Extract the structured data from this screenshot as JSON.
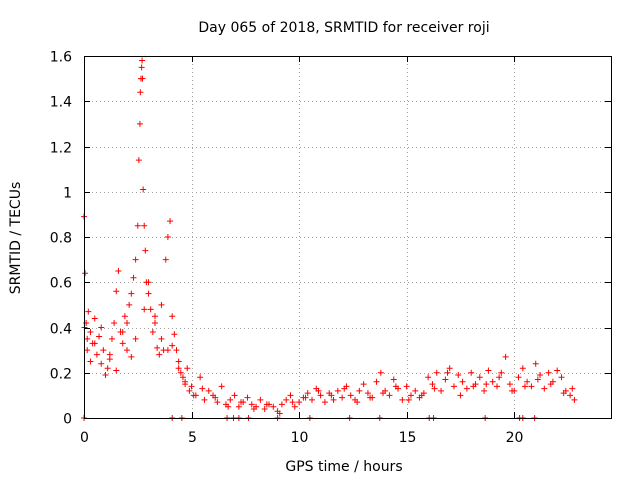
{
  "chart_data": {
    "type": "scatter",
    "title": "Day 065 of 2018, SRMTID for receiver roji",
    "xlabel": "GPS time / hours",
    "ylabel": "SRMTID / TECUs",
    "xlim": [
      0,
      24.5
    ],
    "ylim": [
      0,
      1.6
    ],
    "x_ticks": [
      0,
      5,
      10,
      15,
      20
    ],
    "x_tick_labels": [
      "0",
      "5",
      "10",
      "15",
      "20"
    ],
    "y_ticks": [
      0,
      0.2,
      0.4,
      0.6,
      0.8,
      1.0,
      1.2,
      1.4,
      1.6
    ],
    "y_tick_labels": [
      "0",
      "0.2",
      "0.4",
      "0.6",
      "0.8",
      "1",
      "1.2",
      "1.4",
      "1.6"
    ],
    "grid": true,
    "marker": "plus",
    "color": "#ff0000",
    "series": [
      {
        "name": "SRMTID",
        "x": [
          0.0,
          0.05,
          0.1,
          0.15,
          0.2,
          0.3,
          0.4,
          0.5,
          0.6,
          0.7,
          0.8,
          0.9,
          1.0,
          1.1,
          1.2,
          1.3,
          1.4,
          1.5,
          1.6,
          1.7,
          1.8,
          1.9,
          2.0,
          2.1,
          2.2,
          2.3,
          2.4,
          2.5,
          2.55,
          2.6,
          2.62,
          2.65,
          2.68,
          2.7,
          2.72,
          2.75,
          2.8,
          2.85,
          2.9,
          3.0,
          3.1,
          3.2,
          3.3,
          3.4,
          3.5,
          3.6,
          3.7,
          3.8,
          3.9,
          4.0,
          4.1,
          4.2,
          4.3,
          4.4,
          4.5,
          4.6,
          4.7,
          4.8,
          4.9,
          5.0,
          5.2,
          5.4,
          5.6,
          5.8,
          6.0,
          6.2,
          6.4,
          6.6,
          6.8,
          7.0,
          7.2,
          7.4,
          7.6,
          7.8,
          8.0,
          8.2,
          8.4,
          8.6,
          8.8,
          9.0,
          9.2,
          9.4,
          9.6,
          9.8,
          10.0,
          10.2,
          10.4,
          10.6,
          10.8,
          11.0,
          11.2,
          11.4,
          11.6,
          11.8,
          12.0,
          12.2,
          12.4,
          12.6,
          12.8,
          13.0,
          13.2,
          13.4,
          13.6,
          13.8,
          14.0,
          14.2,
          14.4,
          14.6,
          14.8,
          15.0,
          15.2,
          15.4,
          15.6,
          15.8,
          16.0,
          16.2,
          16.4,
          16.6,
          16.8,
          17.0,
          17.2,
          17.4,
          17.6,
          17.8,
          18.0,
          18.2,
          18.4,
          18.6,
          18.8,
          19.0,
          19.2,
          19.4,
          19.6,
          19.8,
          20.0,
          20.2,
          20.4,
          20.6,
          20.8,
          21.0,
          21.2,
          21.4,
          21.6,
          21.8,
          22.0,
          22.2,
          22.4,
          22.6,
          22.8,
          0.02,
          0.15,
          0.3,
          0.5,
          0.8,
          1.2,
          1.5,
          1.8,
          2.0,
          2.2,
          2.4,
          2.8,
          3.0,
          3.3,
          3.6,
          3.9,
          4.1,
          4.4,
          4.7,
          5.1,
          5.5,
          6.1,
          6.7,
          7.3,
          7.9,
          8.5,
          9.1,
          9.7,
          10.3,
          10.9,
          11.5,
          12.1,
          12.7,
          13.3,
          13.9,
          14.5,
          15.1,
          15.7,
          16.3,
          16.9,
          17.5,
          18.1,
          18.7,
          19.3,
          19.9,
          20.5,
          21.1,
          21.7,
          22.3,
          22.7,
          0.0,
          4.1,
          4.55,
          6.65,
          6.95,
          7.2,
          7.65,
          9.0,
          10.5,
          12.35,
          13.75,
          16.05,
          16.25,
          18.65,
          20.25,
          20.4,
          20.95
        ],
        "y": [
          0.89,
          0.64,
          0.42,
          0.3,
          0.47,
          0.38,
          0.33,
          0.44,
          0.28,
          0.36,
          0.24,
          0.3,
          0.19,
          0.22,
          0.28,
          0.35,
          0.42,
          0.56,
          0.65,
          0.38,
          0.33,
          0.45,
          0.3,
          0.5,
          0.55,
          0.62,
          0.7,
          0.85,
          1.14,
          1.3,
          1.44,
          1.5,
          1.55,
          1.58,
          1.5,
          1.01,
          0.85,
          0.74,
          0.6,
          0.55,
          0.48,
          0.38,
          0.42,
          0.31,
          0.28,
          0.35,
          0.3,
          0.7,
          0.8,
          0.87,
          0.45,
          0.37,
          0.3,
          0.25,
          0.2,
          0.18,
          0.15,
          0.22,
          0.12,
          0.14,
          0.1,
          0.18,
          0.08,
          0.12,
          0.1,
          0.07,
          0.14,
          0.06,
          0.08,
          0.1,
          0.05,
          0.07,
          0.09,
          0.06,
          0.05,
          0.08,
          0.04,
          0.06,
          0.05,
          0.03,
          0.06,
          0.08,
          0.1,
          0.05,
          0.07,
          0.09,
          0.11,
          0.08,
          0.13,
          0.1,
          0.07,
          0.11,
          0.08,
          0.12,
          0.09,
          0.14,
          0.1,
          0.08,
          0.12,
          0.15,
          0.11,
          0.09,
          0.16,
          0.2,
          0.12,
          0.1,
          0.17,
          0.13,
          0.08,
          0.14,
          0.1,
          0.12,
          0.09,
          0.11,
          0.18,
          0.15,
          0.2,
          0.12,
          0.17,
          0.22,
          0.14,
          0.19,
          0.16,
          0.13,
          0.2,
          0.15,
          0.18,
          0.12,
          0.21,
          0.16,
          0.14,
          0.2,
          0.27,
          0.15,
          0.12,
          0.18,
          0.22,
          0.16,
          0.14,
          0.24,
          0.19,
          0.13,
          0.2,
          0.16,
          0.21,
          0.18,
          0.12,
          0.1,
          0.08,
          0.4,
          0.35,
          0.25,
          0.33,
          0.4,
          0.26,
          0.21,
          0.38,
          0.42,
          0.27,
          0.35,
          0.48,
          0.6,
          0.45,
          0.5,
          0.3,
          0.32,
          0.22,
          0.16,
          0.1,
          0.13,
          0.09,
          0.05,
          0.07,
          0.04,
          0.06,
          0.02,
          0.07,
          0.09,
          0.12,
          0.1,
          0.13,
          0.07,
          0.09,
          0.11,
          0.14,
          0.08,
          0.1,
          0.13,
          0.2,
          0.1,
          0.14,
          0.15,
          0.18,
          0.12,
          0.14,
          0.17,
          0.15,
          0.11,
          0.13,
          0.0,
          0.0,
          0.0,
          0.0,
          0.0,
          0.0,
          0.0,
          0.0,
          0.0,
          0.0,
          0.0,
          0.0,
          0.0,
          0.0,
          0.0,
          0.0,
          0.0
        ]
      }
    ]
  }
}
